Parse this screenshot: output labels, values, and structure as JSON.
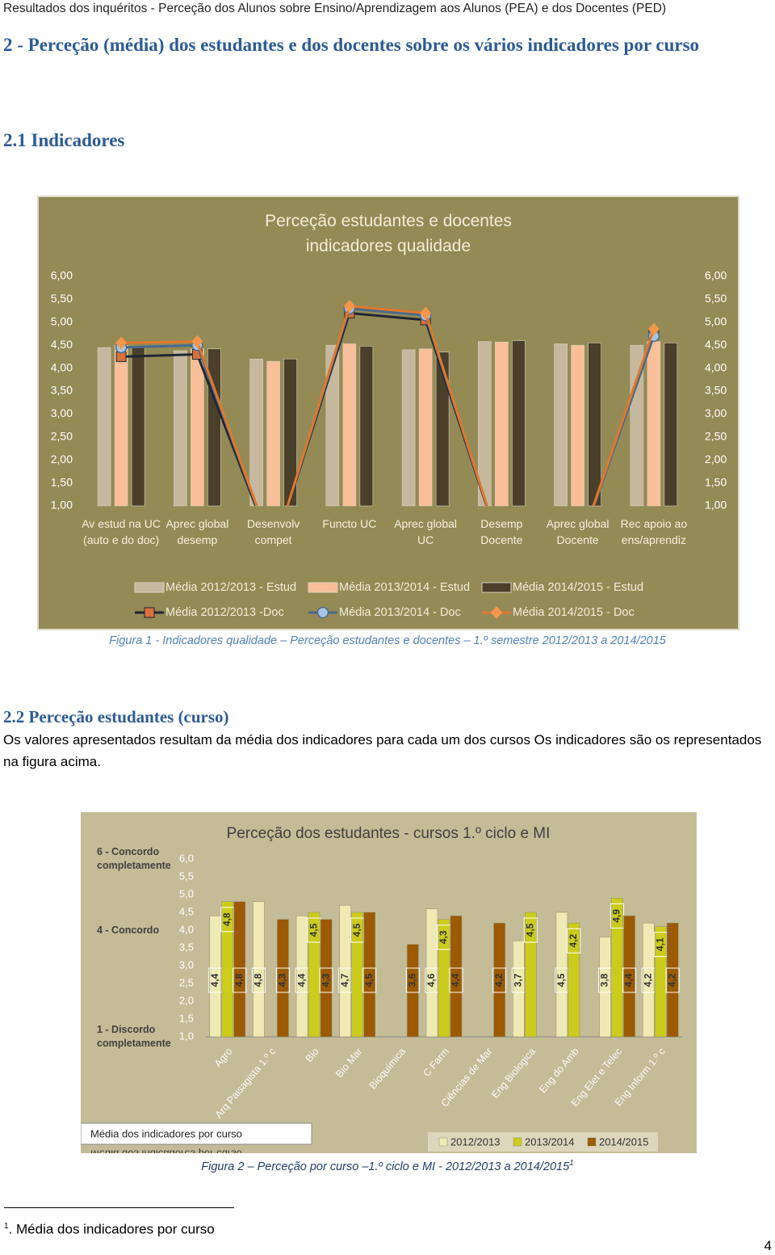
{
  "header": "Resultados dos inquéritos - Perceção dos Alunos sobre Ensino/Aprendizagem aos Alunos (PEA) e dos Docentes (PED)",
  "section_title": "2 - Perceção (média) dos estudantes e dos docentes sobre os vários indicadores por curso",
  "subsection_1": "2.1 Indicadores",
  "figure_1_caption": "Figura 1 - Indicadores qualidade – Perceção estudantes e docentes – 1.º semestre 2012/2013 a 2014/2015",
  "subsection_2": "2.2 Perceção estudantes (curso)",
  "paragraph": "Os valores apresentados resultam da média dos indicadores para cada um dos cursos Os indicadores são os representados na figura acima.",
  "figure_2_caption": "Figura 2 – Perceção por curso –1.º ciclo e MI - 2012/2013 a 2014/2015",
  "figure_2_note_mark": "1",
  "footnote": {
    "mark": "1",
    "text": ". Média dos indicadores por curso"
  },
  "page_number": "4",
  "chart_data": [
    {
      "type": "bar",
      "title": "Perceção estudantes e docentes indicadores qualidade",
      "categories": [
        "Av estud na UC (auto e do doc)",
        "Aprec global desemp",
        "Desenvolv compet",
        "Functo UC",
        "Aprec global UC",
        "Desemp Docente",
        "Aprec global Docente",
        "Rec apoio ao ens/aprendiz"
      ],
      "ylim": [
        1,
        6
      ],
      "yticks": [
        {
          "value": 1,
          "label": "1,00"
        },
        {
          "value": 1.5,
          "label": "1,50"
        },
        {
          "value": 2,
          "label": "2,00"
        },
        {
          "value": 2.5,
          "label": "2,50"
        },
        {
          "value": 3,
          "label": "3,00"
        },
        {
          "value": 3.5,
          "label": "3,50"
        },
        {
          "value": 4,
          "label": "4,00"
        },
        {
          "value": 4.5,
          "label": "4,50"
        },
        {
          "value": 5,
          "label": "5,00"
        },
        {
          "value": 5.5,
          "label": "5,50"
        },
        {
          "value": 6,
          "label": "6,00"
        }
      ],
      "y2lim": [
        1,
        6
      ],
      "y2ticks": [
        {
          "value": 1,
          "label": "1,00"
        },
        {
          "value": 1.5,
          "label": "1,50"
        },
        {
          "value": 2,
          "label": "2,00"
        },
        {
          "value": 2.5,
          "label": "2,50"
        },
        {
          "value": 3,
          "label": "3,00"
        },
        {
          "value": 3.5,
          "label": "3,50"
        },
        {
          "value": 4,
          "label": "4,00"
        },
        {
          "value": 4.5,
          "label": "4,50"
        },
        {
          "value": 5,
          "label": "5,00"
        },
        {
          "value": 5.5,
          "label": "5,50"
        },
        {
          "value": 6,
          "label": "6,00"
        }
      ],
      "grid": false,
      "background": "#948a56",
      "series": [
        {
          "name": "Média 2012/2013 - Estud",
          "type": "bar",
          "color": "#c6b89e",
          "values": [
            4.45,
            4.38,
            4.2,
            4.5,
            4.4,
            4.58,
            4.53,
            4.5
          ]
        },
        {
          "name": "Média 2013/2014 - Estud",
          "type": "bar",
          "color": "#f9bf98",
          "values": [
            4.5,
            4.42,
            4.15,
            4.53,
            4.42,
            4.57,
            4.5,
            4.58
          ]
        },
        {
          "name": "Média 2014/2015 - Estud",
          "type": "bar",
          "color": "#4a3f2a",
          "values": [
            4.45,
            4.42,
            4.2,
            4.48,
            4.35,
            4.6,
            4.55,
            4.55
          ]
        },
        {
          "name": "Média 2012/2013 -Doc",
          "type": "line",
          "color": "#1e2733",
          "marker": "square",
          "marker_color": "#d9703a",
          "values": [
            4.25,
            4.3,
            0,
            5.2,
            5.05,
            0,
            0,
            4.75
          ]
        },
        {
          "name": "Média 2013/2014 - Doc",
          "type": "line",
          "color": "#4b6a8c",
          "marker": "circle",
          "marker_color": "#a9c4e0",
          "values": [
            4.45,
            4.5,
            0,
            5.3,
            5.15,
            0,
            0,
            4.7
          ]
        },
        {
          "name": "Média 2014/2015 - Doc",
          "type": "line",
          "color": "#e0782c",
          "marker": "diamond",
          "marker_color": "#f4974a",
          "values": [
            4.55,
            4.58,
            0,
            5.35,
            5.2,
            0,
            0,
            4.85
          ]
        }
      ]
    },
    {
      "type": "bar",
      "title": "Perceção dos estudantes - cursos 1.º ciclo e MI",
      "categories": [
        "Agro",
        "Arq Paisagista 1.º c",
        "Bio",
        "Bio Mar",
        "Bioquímica",
        "C Farm",
        "Ciências de Mar",
        "Eng Biologica",
        "Eng do Amb",
        "Eng Elet e Telec",
        "Eng Inform 1.º c"
      ],
      "ylim": [
        1,
        6
      ],
      "yticks": [
        {
          "value": 1,
          "label": "1,0"
        },
        {
          "value": 1.5,
          "label": "1,5"
        },
        {
          "value": 2,
          "label": "2,0"
        },
        {
          "value": 2.5,
          "label": "2,5"
        },
        {
          "value": 3,
          "label": "3,0"
        },
        {
          "value": 3.5,
          "label": "3,5"
        },
        {
          "value": 4,
          "label": "4,0"
        },
        {
          "value": 4.5,
          "label": "4,5"
        },
        {
          "value": 5,
          "label": "5,0"
        },
        {
          "value": 5.5,
          "label": "5,5"
        },
        {
          "value": 6,
          "label": "6,0"
        }
      ],
      "grid": false,
      "background": "#c4bc96",
      "annotations": [
        {
          "value": 6,
          "text": "6 - Concordo completamente"
        },
        {
          "value": 4,
          "text": "4 - Concordo"
        },
        {
          "value": 1,
          "text": "1 - Discordo completamente"
        }
      ],
      "box_label": "Média dos indicadores por curso",
      "series": [
        {
          "name": "2012/2013",
          "color": "#efeab4",
          "values": [
            4.4,
            4.8,
            4.4,
            4.7,
            null,
            4.6,
            null,
            3.7,
            4.5,
            3.8,
            4.2
          ],
          "value_labels": [
            "4,4",
            "4,8",
            "4,4",
            "4,7",
            null,
            "4,6",
            null,
            "3,7",
            "4,5",
            "3,8",
            "4,2"
          ]
        },
        {
          "name": "2013/2014",
          "color": "#cccc1c",
          "values": [
            4.8,
            null,
            4.5,
            4.5,
            null,
            4.3,
            null,
            4.5,
            4.2,
            4.9,
            4.1
          ],
          "value_labels": [
            "4,8",
            null,
            "4,5",
            "4,5",
            null,
            "4,3",
            null,
            "4,5",
            "4,2",
            "4,9",
            "4,1"
          ]
        },
        {
          "name": "2014/2015",
          "color": "#9c5a02",
          "values": [
            4.8,
            4.3,
            4.3,
            4.5,
            3.6,
            4.4,
            4.2,
            null,
            null,
            4.4,
            4.2
          ],
          "value_labels": [
            "4,8",
            "4,3",
            "4,3",
            "4,5",
            "3,6",
            "4,4",
            "4,2",
            null,
            null,
            "4,4",
            "4,2"
          ]
        }
      ]
    }
  ]
}
